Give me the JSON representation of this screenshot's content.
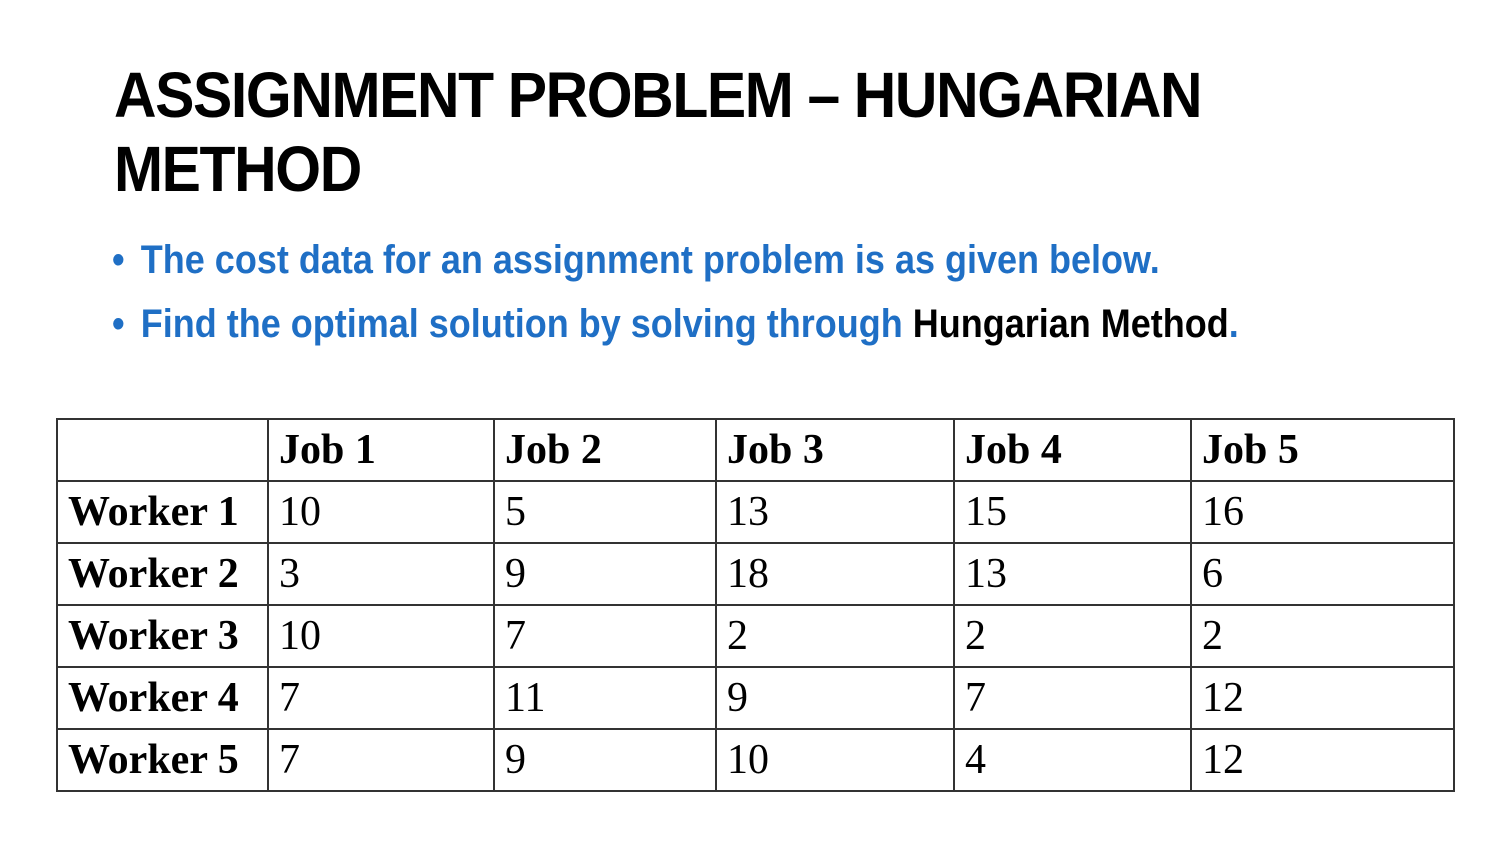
{
  "title_line1": "ASSIGNMENT PROBLEM – HUNGARIAN",
  "title_line2": "METHOD",
  "bullets": {
    "first": "The cost data for an assignment problem is as given below.",
    "second_prefix": "Find the optimal solution by solving through ",
    "second_emphasis": "Hungarian Method",
    "second_suffix": "."
  },
  "colors": {
    "bullet_text": "#1f6fc5",
    "emphasis_text": "#000000"
  },
  "table": {
    "corner": "",
    "headers": [
      "Job 1",
      "Job 2",
      "Job 3",
      "Job 4",
      "Job 5"
    ],
    "rows": [
      {
        "label": "Worker 1",
        "values": [
          "10",
          "5",
          "13",
          "15",
          "16"
        ]
      },
      {
        "label": "Worker 2",
        "values": [
          "3",
          "9",
          "18",
          "13",
          "6"
        ]
      },
      {
        "label": "Worker 3",
        "values": [
          "10",
          "7",
          "2",
          "2",
          "2"
        ]
      },
      {
        "label": "Worker 4",
        "values": [
          "7",
          "11",
          "9",
          "7",
          "12"
        ]
      },
      {
        "label": "Worker 5",
        "values": [
          "7",
          "9",
          "10",
          "4",
          "12"
        ]
      }
    ]
  }
}
